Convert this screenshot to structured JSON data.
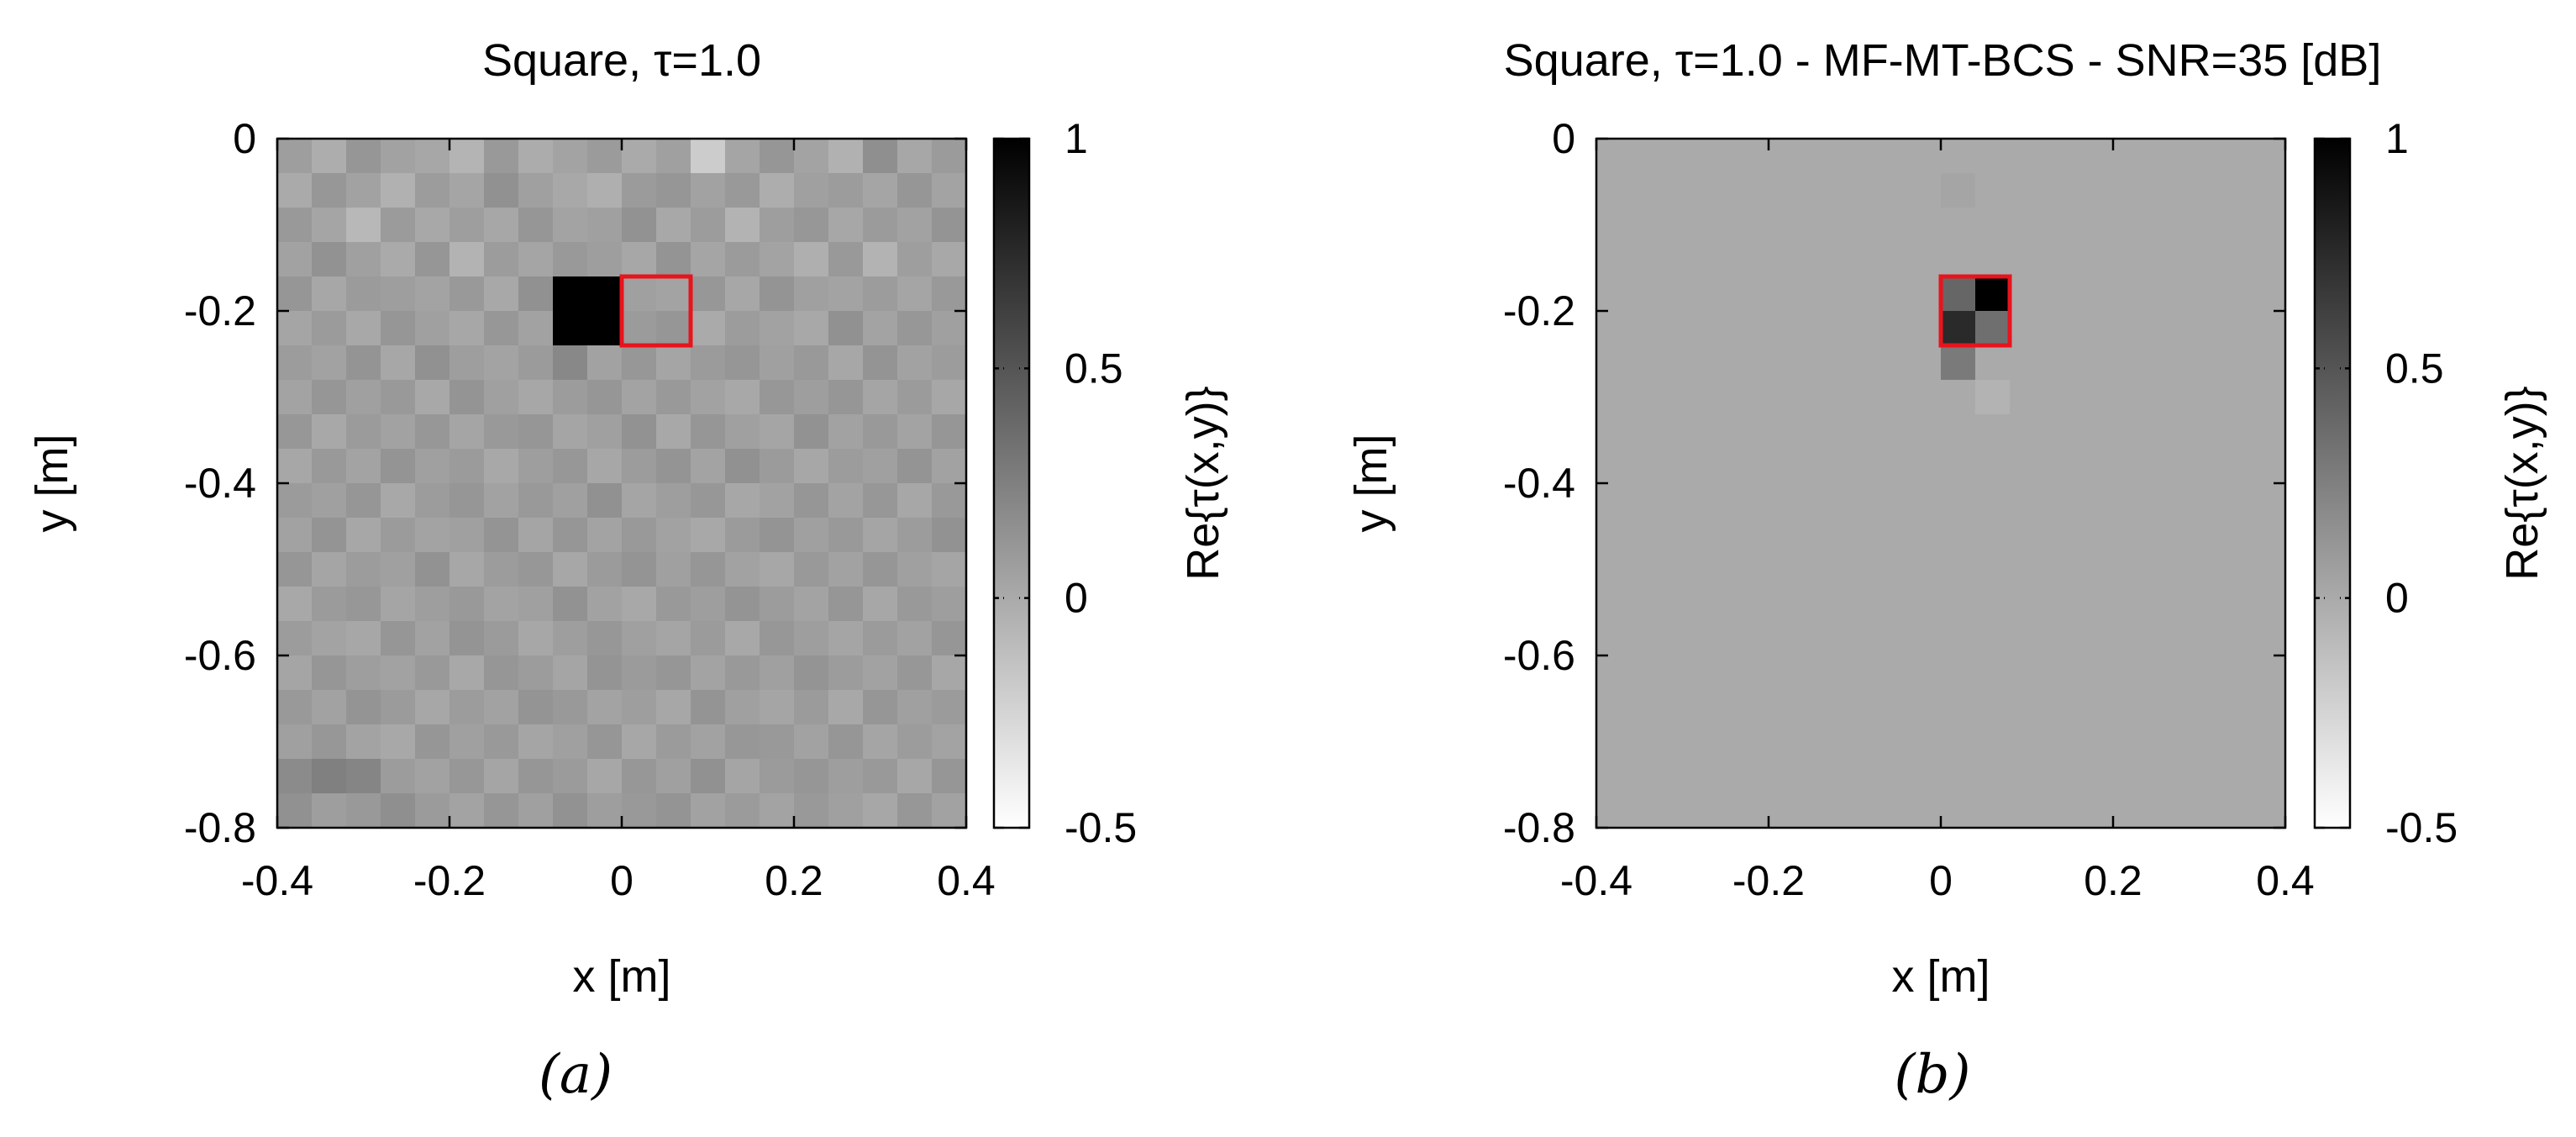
{
  "colors": {
    "target_outline": "#e8141c",
    "colormap_low": "#ffffff",
    "colormap_high": "#000000"
  },
  "chart_data": [
    {
      "type": "heatmap",
      "panel_label": "(a)",
      "title": "Square, τ=1.0",
      "xlabel": "x [m]",
      "ylabel": "y [m]",
      "xlim": [
        -0.4,
        0.4
      ],
      "ylim": [
        -0.8,
        0
      ],
      "x_ticks": [
        "-0.4",
        "-0.2",
        "0",
        "0.2",
        "0.4"
      ],
      "x_tick_values": [
        -0.4,
        -0.2,
        0,
        0.2,
        0.4
      ],
      "y_ticks": [
        "0",
        "-0.2",
        "-0.4",
        "-0.6",
        "-0.8"
      ],
      "y_tick_values": [
        0,
        -0.2,
        -0.4,
        -0.6,
        -0.8
      ],
      "grid_cells": [
        20,
        20
      ],
      "colorbar": {
        "label": "Re{τ(x,y)}",
        "range": [
          -0.5,
          1
        ],
        "ticks": [
          "1",
          "0.5",
          "0",
          "-0.5"
        ],
        "tick_values": [
          1,
          0.5,
          0,
          -0.5
        ]
      },
      "background": "random noise, values mostly between -0.35 and 0.35",
      "z": [
        [
          0.07,
          -0.02,
          0.12,
          0.05,
          0.02,
          -0.06,
          0.1,
          -0.01,
          0.04,
          0.09,
          0.0,
          0.06,
          -0.2,
          0.03,
          0.12,
          0.04,
          -0.04,
          0.16,
          0.02,
          0.09
        ],
        [
          0.0,
          0.11,
          0.05,
          -0.04,
          0.08,
          0.03,
          0.15,
          0.06,
          0.01,
          -0.03,
          0.09,
          0.12,
          0.05,
          0.1,
          -0.02,
          0.06,
          0.08,
          0.03,
          0.12,
          0.04
        ],
        [
          0.1,
          0.03,
          -0.08,
          0.09,
          0.01,
          0.07,
          0.02,
          0.12,
          0.04,
          0.06,
          0.14,
          0.01,
          0.08,
          -0.05,
          0.07,
          0.11,
          0.02,
          0.09,
          0.05,
          0.13
        ],
        [
          0.05,
          0.14,
          0.06,
          0.0,
          0.12,
          -0.05,
          0.08,
          0.03,
          0.1,
          0.07,
          0.02,
          0.13,
          0.03,
          0.09,
          0.04,
          -0.03,
          0.1,
          -0.05,
          0.07,
          0.01
        ],
        [
          0.12,
          0.02,
          0.09,
          0.07,
          0.04,
          0.1,
          0.01,
          0.15,
          1.0,
          1.0,
          0.06,
          0.04,
          0.11,
          0.02,
          0.13,
          0.06,
          0.04,
          0.08,
          0.03,
          0.1
        ],
        [
          0.03,
          0.09,
          0.01,
          0.12,
          0.06,
          0.02,
          0.11,
          0.05,
          1.0,
          1.0,
          0.09,
          0.12,
          0.0,
          0.08,
          0.05,
          0.01,
          0.15,
          0.04,
          0.11,
          0.06
        ],
        [
          0.08,
          0.05,
          0.13,
          0.02,
          0.15,
          0.07,
          0.04,
          0.09,
          0.2,
          0.05,
          0.11,
          0.03,
          0.09,
          0.12,
          0.06,
          0.1,
          0.02,
          0.13,
          0.05,
          0.08
        ],
        [
          0.04,
          0.12,
          0.06,
          0.1,
          0.01,
          0.13,
          0.06,
          0.02,
          0.08,
          0.12,
          0.04,
          0.1,
          0.05,
          0.01,
          0.11,
          0.07,
          0.12,
          0.03,
          0.09,
          0.02
        ],
        [
          0.11,
          0.01,
          0.09,
          0.05,
          0.11,
          0.03,
          0.1,
          0.12,
          0.03,
          0.06,
          0.14,
          0.01,
          0.12,
          0.06,
          0.03,
          0.14,
          0.05,
          0.1,
          0.04,
          0.12
        ],
        [
          0.02,
          0.1,
          0.04,
          0.13,
          0.06,
          0.09,
          0.01,
          0.07,
          0.11,
          0.02,
          0.08,
          0.13,
          0.04,
          0.15,
          0.09,
          0.02,
          0.08,
          0.06,
          0.13,
          0.05
        ],
        [
          0.09,
          0.06,
          0.12,
          0.01,
          0.08,
          0.12,
          0.05,
          0.1,
          0.06,
          0.15,
          0.03,
          0.07,
          0.11,
          0.02,
          0.05,
          0.12,
          0.04,
          0.11,
          0.02,
          0.1
        ],
        [
          0.05,
          0.13,
          0.02,
          0.09,
          0.04,
          0.06,
          0.13,
          0.03,
          0.12,
          0.04,
          0.1,
          0.05,
          0.01,
          0.09,
          0.13,
          0.06,
          0.1,
          0.03,
          0.08,
          0.14
        ],
        [
          0.12,
          0.03,
          0.08,
          0.06,
          0.14,
          0.02,
          0.08,
          0.11,
          0.02,
          0.09,
          0.13,
          0.06,
          0.12,
          0.05,
          0.02,
          0.1,
          0.05,
          0.12,
          0.06,
          0.03
        ],
        [
          0.01,
          0.09,
          0.11,
          0.03,
          0.07,
          0.1,
          0.04,
          0.06,
          0.14,
          0.05,
          0.01,
          0.1,
          0.07,
          0.13,
          0.08,
          0.04,
          0.12,
          0.02,
          0.1,
          0.07
        ],
        [
          0.08,
          0.04,
          0.02,
          0.12,
          0.05,
          0.13,
          0.09,
          0.02,
          0.07,
          0.11,
          0.06,
          0.03,
          0.09,
          0.01,
          0.11,
          0.07,
          0.03,
          0.09,
          0.05,
          0.12
        ],
        [
          0.03,
          0.12,
          0.07,
          0.05,
          0.1,
          0.01,
          0.12,
          0.08,
          0.03,
          0.13,
          0.09,
          0.12,
          0.04,
          0.1,
          0.06,
          0.13,
          0.08,
          0.05,
          0.11,
          0.02
        ],
        [
          0.1,
          0.05,
          0.13,
          0.09,
          0.02,
          0.08,
          0.05,
          0.13,
          0.1,
          0.04,
          0.07,
          0.02,
          0.13,
          0.06,
          0.03,
          0.09,
          0.01,
          0.12,
          0.06,
          0.09
        ],
        [
          0.06,
          0.11,
          0.04,
          0.01,
          0.12,
          0.06,
          0.1,
          0.03,
          0.06,
          0.12,
          0.02,
          0.09,
          0.05,
          0.11,
          0.1,
          0.05,
          0.12,
          0.03,
          0.08,
          0.04
        ],
        [
          0.18,
          0.25,
          0.22,
          0.08,
          0.05,
          0.11,
          0.03,
          0.12,
          0.09,
          0.02,
          0.11,
          0.06,
          0.15,
          0.03,
          0.09,
          0.12,
          0.07,
          0.1,
          0.02,
          0.12
        ],
        [
          0.15,
          0.07,
          0.1,
          0.16,
          0.09,
          0.04,
          0.12,
          0.06,
          0.14,
          0.07,
          0.1,
          0.13,
          0.05,
          0.09,
          0.04,
          0.1,
          0.06,
          0.02,
          0.11,
          0.05
        ]
      ]
    },
    {
      "type": "heatmap",
      "panel_label": "(b)",
      "title": "Square, τ=1.0 - MF-MT-BCS - SNR=35 [dB]",
      "xlabel": "x [m]",
      "ylabel": "y [m]",
      "xlim": [
        -0.4,
        0.4
      ],
      "ylim": [
        -0.8,
        0
      ],
      "x_ticks": [
        "-0.4",
        "-0.2",
        "0",
        "0.2",
        "0.4"
      ],
      "x_tick_values": [
        -0.4,
        -0.2,
        0,
        0.2,
        0.4
      ],
      "y_ticks": [
        "0",
        "-0.2",
        "-0.4",
        "-0.6",
        "-0.8"
      ],
      "y_tick_values": [
        0,
        -0.2,
        -0.4,
        -0.6,
        -0.8
      ],
      "grid_cells": [
        20,
        20
      ],
      "colorbar": {
        "label": "Re{τ(x,y)}",
        "range": [
          -0.5,
          1
        ],
        "ticks": [
          "1",
          "0.5",
          "0",
          "-0.5"
        ],
        "tick_values": [
          1,
          0.5,
          0,
          -0.5
        ]
      },
      "background_value": 0.0,
      "nonzero_cells": [
        {
          "col": 10,
          "row": 1,
          "value": 0.03
        },
        {
          "col": 10,
          "row": 4,
          "value": 0.4
        },
        {
          "col": 11,
          "row": 4,
          "value": 1.0
        },
        {
          "col": 10,
          "row": 5,
          "value": 0.75
        },
        {
          "col": 11,
          "row": 5,
          "value": 0.35
        },
        {
          "col": 10,
          "row": 6,
          "value": 0.28
        },
        {
          "col": 11,
          "row": 7,
          "value": -0.05
        }
      ]
    }
  ],
  "target_box": {
    "x0": 0.0,
    "x1": 0.08,
    "y0": -0.24,
    "y1": -0.16
  }
}
